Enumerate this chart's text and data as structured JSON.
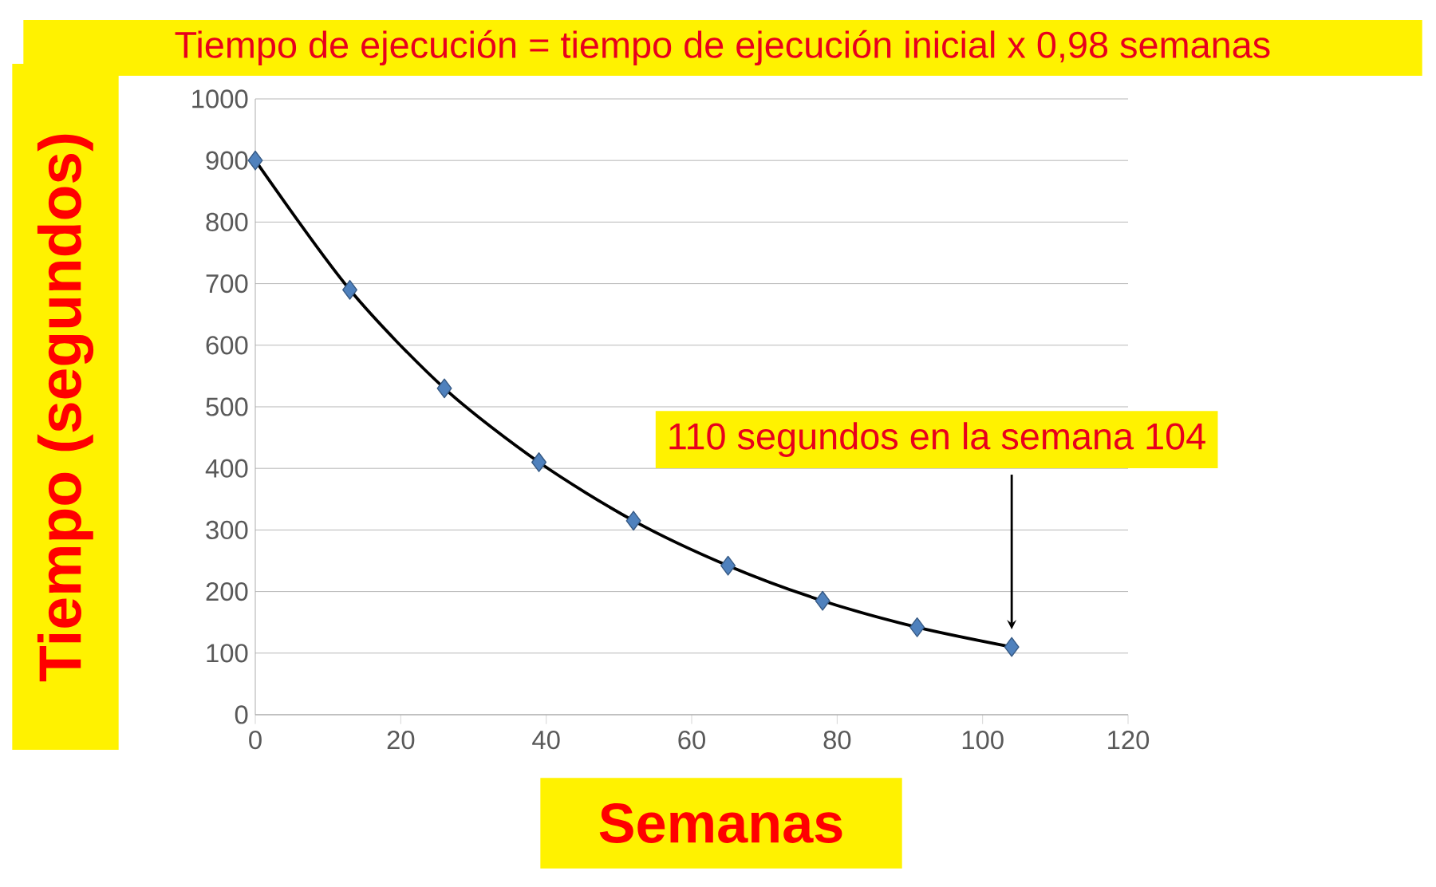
{
  "chart_data": {
    "type": "line",
    "title": "Tiempo de ejecución = tiempo de ejecución inicial x 0,98 semanas",
    "xlabel": "Semanas",
    "ylabel": "Tiempo (segundos)",
    "x": [
      0,
      13,
      26,
      39,
      52,
      65,
      78,
      91,
      104
    ],
    "series": [
      {
        "color": "#4f81bd",
        "values": [
          900,
          690,
          530,
          410,
          315,
          242,
          185,
          142,
          110
        ]
      }
    ],
    "xlim": [
      0,
      120
    ],
    "xticks": [
      0,
      20,
      40,
      60,
      80,
      100,
      120
    ],
    "ylim": [
      0,
      1000
    ],
    "yticks": [
      0,
      100,
      200,
      300,
      400,
      500,
      600,
      700,
      800,
      900,
      1000
    ],
    "grid": "y",
    "marker": "diamond",
    "line_style": "solid",
    "annotations": [
      "110 segundos en la semana 104"
    ]
  }
}
